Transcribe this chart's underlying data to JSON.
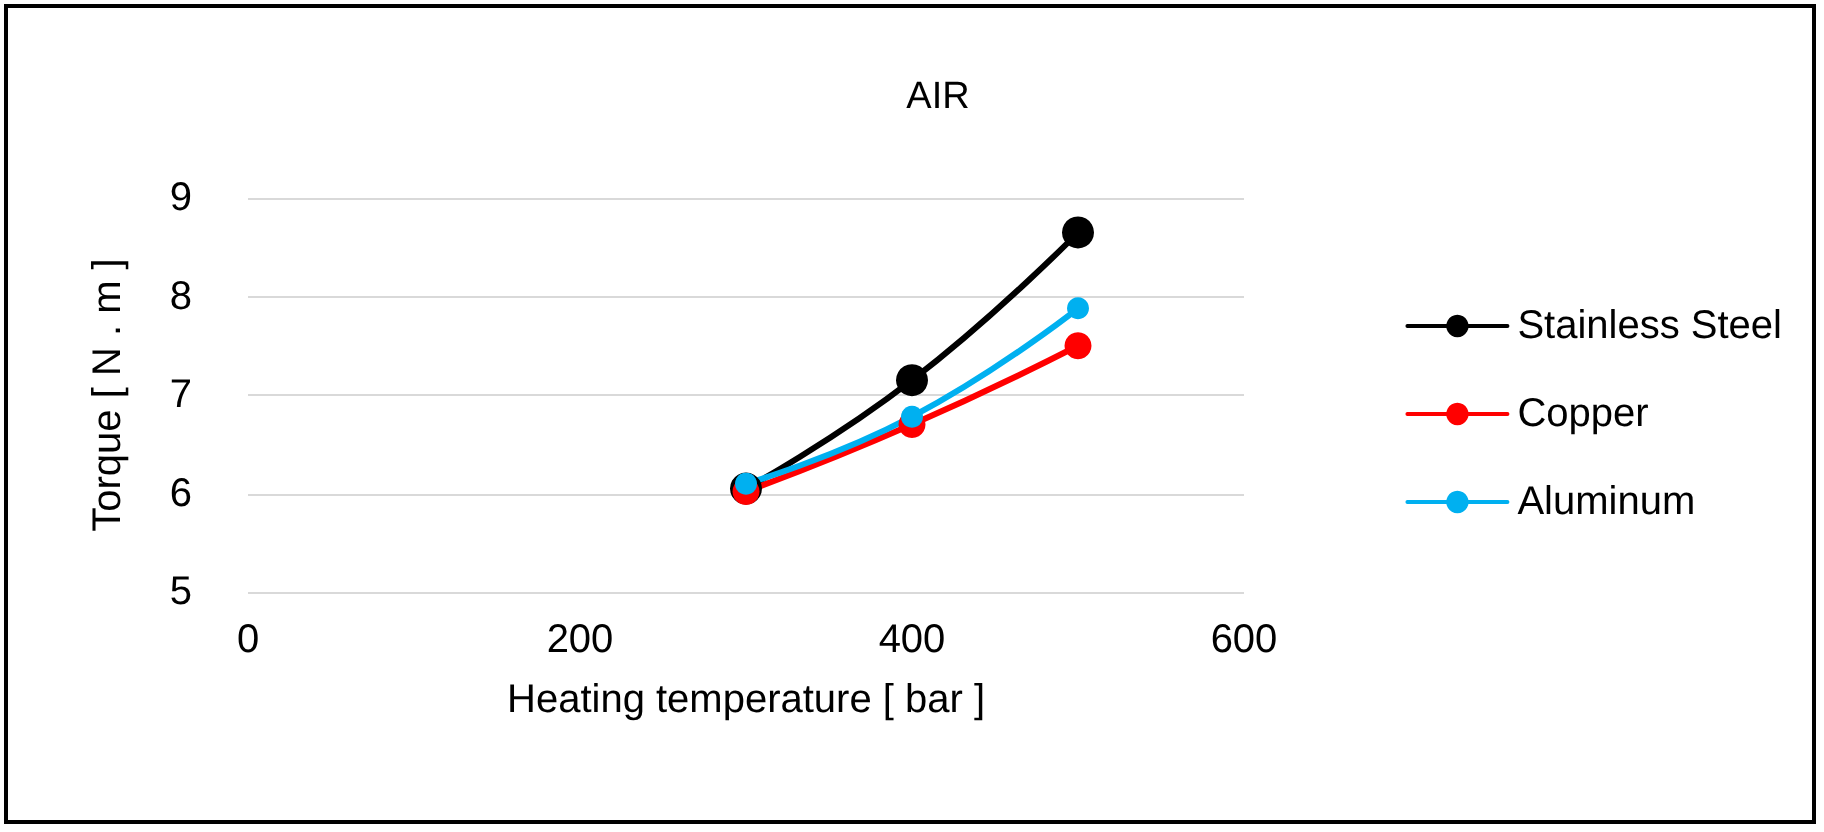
{
  "chart_data": {
    "type": "line",
    "title": "AIR",
    "xlabel": "Heating temperature [ bar ]",
    "ylabel": "Torque [ N . m ]",
    "x": [
      300,
      400,
      500
    ],
    "series": [
      {
        "name": "Stainless Steel",
        "color": "#000000",
        "values": [
          6.05,
          7.15,
          8.65
        ]
      },
      {
        "name": "Copper",
        "color": "#ff0000",
        "values": [
          6.02,
          6.7,
          7.5
        ]
      },
      {
        "name": "Aluminum",
        "color": "#00b0f0",
        "values": [
          6.1,
          6.78,
          7.88
        ]
      }
    ],
    "xlim": [
      0,
      600
    ],
    "xticks": [
      0,
      200,
      400,
      600
    ],
    "ylim": [
      5,
      9
    ],
    "yticks": [
      5,
      6,
      7,
      8,
      9
    ],
    "grid": "y",
    "legend": "right",
    "marker": "circle",
    "line_style": "solid"
  }
}
